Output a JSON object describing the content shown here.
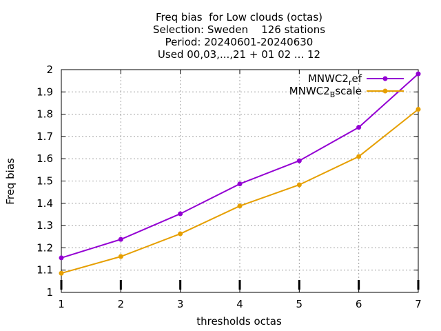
{
  "chart_data": {
    "type": "line",
    "title_lines": [
      "Freq bias  for Low clouds (octas)",
      "Selection: Sweden    126 stations",
      "Period: 20240601-20240630",
      "Used 00,03,...,21 + 01 02 ... 12"
    ],
    "xlabel": "thresholds octas",
    "ylabel": "Freq bias",
    "x": [
      1,
      2,
      3,
      4,
      5,
      6,
      7
    ],
    "xlim": [
      1,
      7
    ],
    "ylim": [
      1,
      2
    ],
    "xticks": [
      "1",
      "2",
      "3",
      "4",
      "5",
      "6",
      "7"
    ],
    "yticks": [
      "1",
      "1.1",
      "1.2",
      "1.3",
      "1.4",
      "1.5",
      "1.6",
      "1.7",
      "1.8",
      "1.9",
      "2"
    ],
    "grid": true,
    "legend_position": "top-right",
    "series": [
      {
        "name": "MNWC2_ref",
        "legend_main": "MNWC2",
        "legend_sub": "r",
        "legend_rest": "ef",
        "color": "#9400d3",
        "values": [
          1.155,
          1.238,
          1.353,
          1.487,
          1.591,
          1.741,
          1.981
        ]
      },
      {
        "name": "MNWC2_Bscale",
        "legend_main": "MNWC2",
        "legend_sub": "B",
        "legend_rest": "scale",
        "color": "#e69f00",
        "values": [
          1.086,
          1.161,
          1.263,
          1.388,
          1.483,
          1.61,
          1.822
        ]
      }
    ]
  }
}
